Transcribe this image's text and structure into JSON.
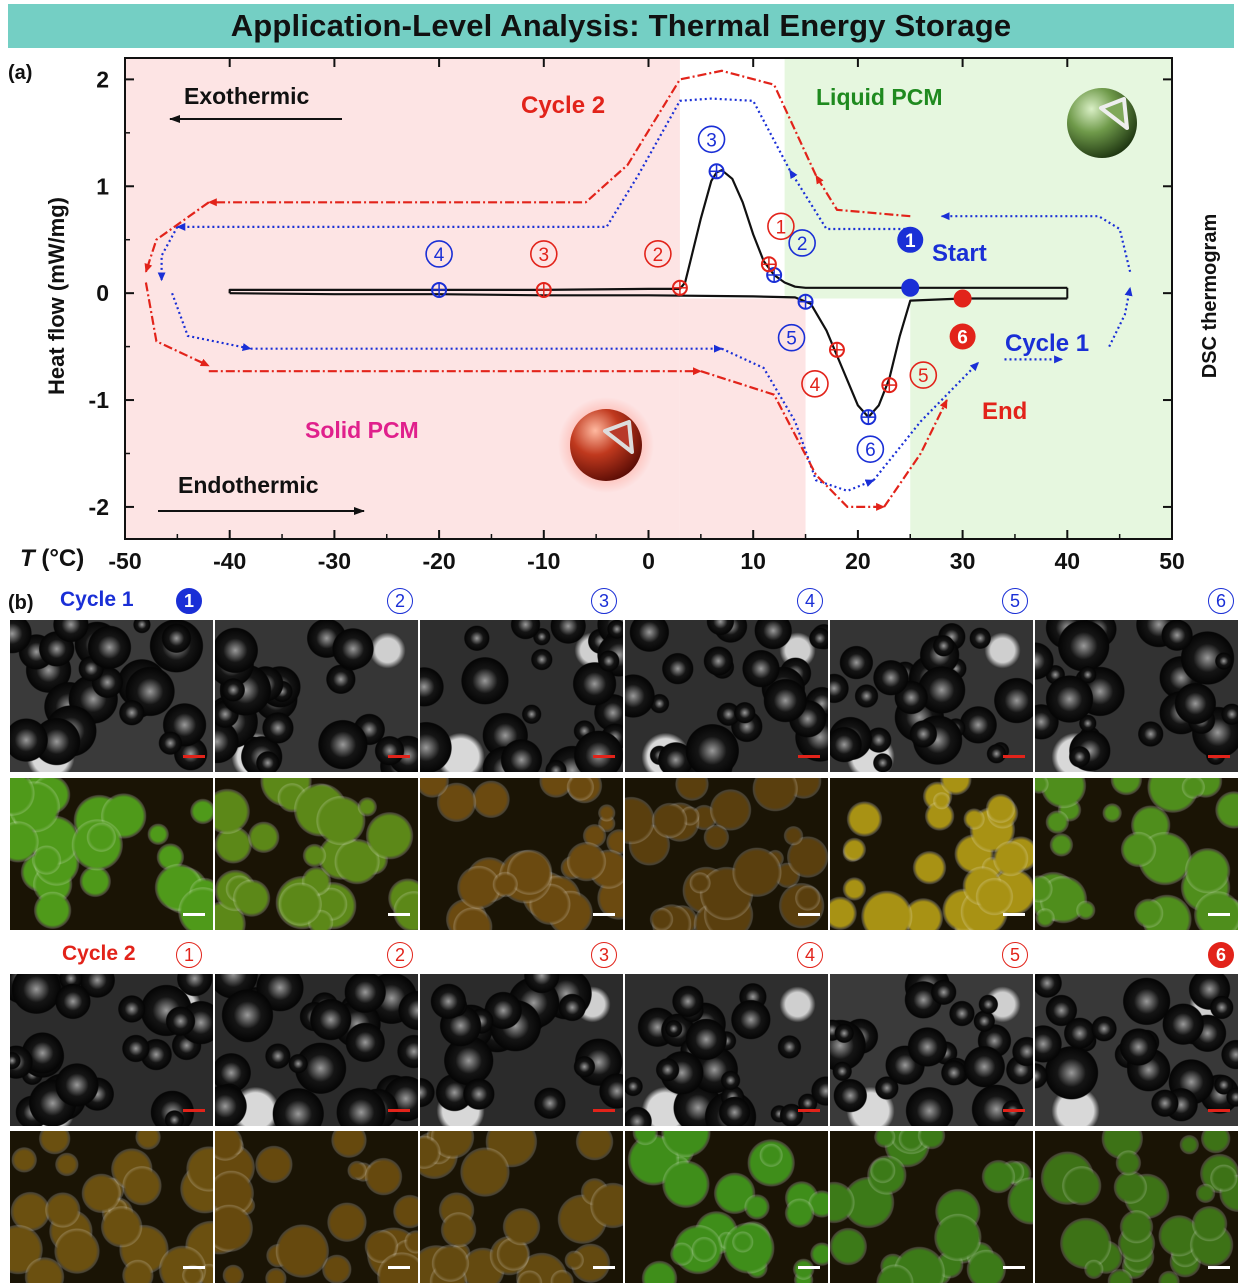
{
  "title": "Application-Level Analysis: Thermal Energy Storage",
  "panel_a_label": "(a)",
  "panel_b_label": "(b)",
  "colors": {
    "banner": "#74cfc4",
    "solid_region": "#fde4e4",
    "liquid_region": "#e6f7df",
    "cycle1": "#1a2fd6",
    "cycle2": "#e2231a",
    "dsc_curve": "#111111",
    "liquid_text": "#1f8a1f",
    "solid_text": "#e0208c"
  },
  "chart_data": {
    "type": "line",
    "xlabel_italic": "T",
    "xlabel_rest": " (°C)",
    "ylabel": "Heat flow (mW/mg)",
    "right_label": "DSC thermogram",
    "xlim": [
      -50,
      50
    ],
    "ylim": [
      -2.3,
      2.2
    ],
    "xticks": [
      -50,
      -40,
      -30,
      -20,
      -10,
      0,
      10,
      20,
      30,
      40,
      50
    ],
    "yticks": [
      -2,
      -1,
      0,
      1,
      2
    ],
    "regions": [
      {
        "name": "Solid PCM",
        "x": [
          -50,
          3
        ]
      },
      {
        "name": "Solid PCM",
        "x": [
          3,
          15
        ],
        "y": [
          -2.3,
          -0.05
        ]
      },
      {
        "name": "Liquid PCM",
        "x": [
          13,
          50
        ],
        "y": [
          -0.05,
          2.2
        ]
      },
      {
        "name": "Liquid PCM",
        "x": [
          25,
          50
        ],
        "y": [
          -2.3,
          -0.05
        ]
      }
    ],
    "series": [
      {
        "role": "cooling",
        "x": [
          40,
          30,
          25,
          15,
          14,
          13,
          12,
          11,
          10,
          9,
          8,
          7,
          6.5,
          6,
          5,
          4,
          3.5,
          3,
          0,
          -10,
          -20,
          -30,
          -40,
          -40
        ],
        "y": [
          0.05,
          0.05,
          0.05,
          0.05,
          0.06,
          0.1,
          0.17,
          0.3,
          0.55,
          0.85,
          1.07,
          1.15,
          1.13,
          1.05,
          0.7,
          0.3,
          0.1,
          0.04,
          0.04,
          0.03,
          0.03,
          0.03,
          0.03,
          0.0
        ]
      },
      {
        "role": "heating",
        "x": [
          -40,
          -30,
          -20,
          -10,
          0,
          10,
          14,
          15.5,
          17,
          18.5,
          20,
          21,
          22,
          23,
          24,
          25,
          30,
          40
        ],
        "y": [
          0.0,
          -0.01,
          -0.01,
          -0.02,
          -0.02,
          -0.03,
          -0.04,
          -0.1,
          -0.35,
          -0.7,
          -1.05,
          -1.16,
          -1.05,
          -0.8,
          -0.4,
          -0.07,
          -0.05,
          -0.05
        ]
      }
    ],
    "cycle1_points": [
      {
        "label": "1",
        "x": 25,
        "y": 0.05,
        "filled": true
      },
      {
        "label": "2",
        "x": 12,
        "y": 0.17
      },
      {
        "label": "3",
        "x": 6.5,
        "y": 1.14
      },
      {
        "label": "4",
        "x": -20,
        "y": 0.03
      },
      {
        "label": "5",
        "x": 15,
        "y": -0.08
      },
      {
        "label": "6",
        "x": 21,
        "y": -1.16
      }
    ],
    "cycle2_points": [
      {
        "label": "1",
        "x": 11.5,
        "y": 0.27
      },
      {
        "label": "2",
        "x": 3,
        "y": 0.05
      },
      {
        "label": "3",
        "x": -10,
        "y": 0.03
      },
      {
        "label": "4",
        "x": 18,
        "y": -0.53
      },
      {
        "label": "5",
        "x": 23,
        "y": -0.86
      },
      {
        "label": "6",
        "x": 30,
        "y": -0.05,
        "filled": true
      }
    ],
    "annotations": {
      "exothermic": "Exothermic",
      "endothermic": "Endothermic",
      "liquid": "Liquid PCM",
      "solid": "Solid PCM",
      "cycle1": "Cycle 1",
      "cycle2": "Cycle 2",
      "start": "Start",
      "end": "End"
    }
  },
  "panel_b": {
    "cycle1_label": "Cycle 1",
    "cycle2_label": "Cycle 2",
    "markers": [
      "1",
      "2",
      "3",
      "4",
      "5",
      "6"
    ],
    "rows": [
      {
        "kind": "brightfield",
        "tints": [
          "#3a3a3a",
          "#363636",
          "#2e2e2e",
          "#2f2f2f",
          "#343434",
          "#323232"
        ],
        "bar": "#e2231a"
      },
      {
        "kind": "fluorescence",
        "tints": [
          "#4f9a1a",
          "#5c8818",
          "#6b4a10",
          "#5a3f0e",
          "#a89214",
          "#4f8e1c"
        ],
        "bar": "#ffffff"
      },
      {
        "kind": "brightfield",
        "tints": [
          "#2c2c2c",
          "#2a2a2a",
          "#2b2b2b",
          "#2e2e2e",
          "#3a3a3a",
          "#383838"
        ],
        "bar": "#e2231a"
      },
      {
        "kind": "fluorescence",
        "tints": [
          "#6b5010",
          "#66490e",
          "#644a10",
          "#3f8e1a",
          "#3c7a18",
          "#3d7216"
        ],
        "bar": "#ffffff"
      }
    ]
  }
}
